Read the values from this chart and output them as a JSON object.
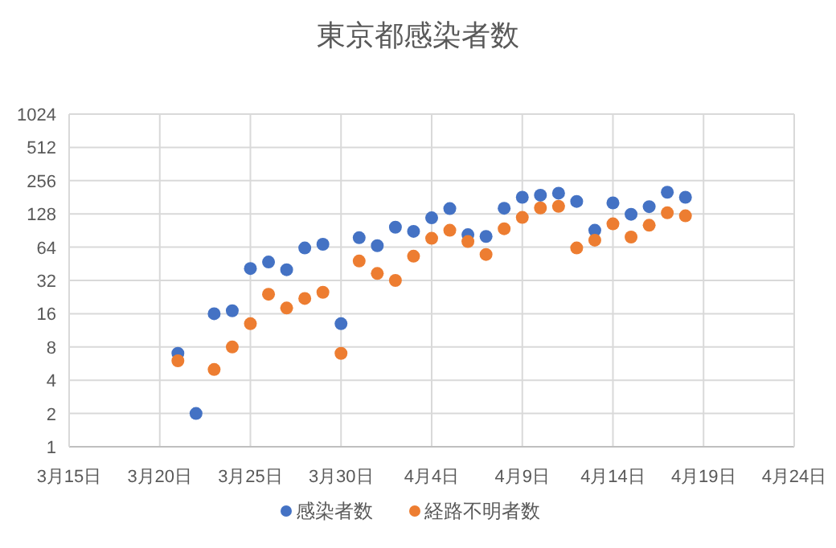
{
  "chart_data": {
    "type": "scatter",
    "title": "東京都感染者数",
    "x": [
      "--03-21",
      "--03-22",
      "--03-23",
      "--03-24",
      "--03-25",
      "--03-26",
      "--03-27",
      "--03-28",
      "--03-29",
      "--03-30",
      "--03-31",
      "--04-01",
      "--04-02",
      "--04-03",
      "--04-04",
      "--04-05",
      "--04-06",
      "--04-07",
      "--04-08",
      "--04-09",
      "--04-10",
      "--04-11",
      "--04-12",
      "--04-13",
      "--04-14",
      "--04-15",
      "--04-16",
      "--04-17",
      "--04-18"
    ],
    "series": [
      {
        "name": "感染者数",
        "color": "#4472c4",
        "values": [
          7,
          2,
          16,
          17,
          41,
          47,
          40,
          63,
          68,
          13,
          78,
          66,
          97,
          89,
          118,
          143,
          83,
          80,
          144,
          181,
          189,
          197,
          166,
          91,
          161,
          127,
          149,
          201,
          181
        ]
      },
      {
        "name": "経路不明者数",
        "color": "#ed7d31",
        "values": [
          6,
          null,
          5,
          8,
          13,
          24,
          18,
          22,
          25,
          7,
          48,
          37,
          32,
          53,
          77,
          91,
          72,
          55,
          94,
          119,
          145,
          150,
          63,
          74,
          104,
          79,
          101,
          131,
          123
        ]
      }
    ],
    "log": "y",
    "ylim": [
      1,
      1024
    ],
    "yticks": [
      1,
      2,
      4,
      8,
      16,
      32,
      64,
      128,
      256,
      512,
      1024
    ],
    "xlim": [
      "--03-15",
      "--04-24"
    ],
    "xticks": [
      {
        "value": "--03-15",
        "label": "3月15日"
      },
      {
        "value": "--03-20",
        "label": "3月20日"
      },
      {
        "value": "--03-25",
        "label": "3月25日"
      },
      {
        "value": "--03-30",
        "label": "3月30日"
      },
      {
        "value": "--04-04",
        "label": "4月4日"
      },
      {
        "value": "--04-09",
        "label": "4月9日"
      },
      {
        "value": "--04-14",
        "label": "4月14日"
      },
      {
        "value": "--04-19",
        "label": "4月19日"
      },
      {
        "value": "--04-24",
        "label": "4月24日"
      }
    ],
    "grid": true,
    "legend": "bottom",
    "marker": "circle"
  }
}
